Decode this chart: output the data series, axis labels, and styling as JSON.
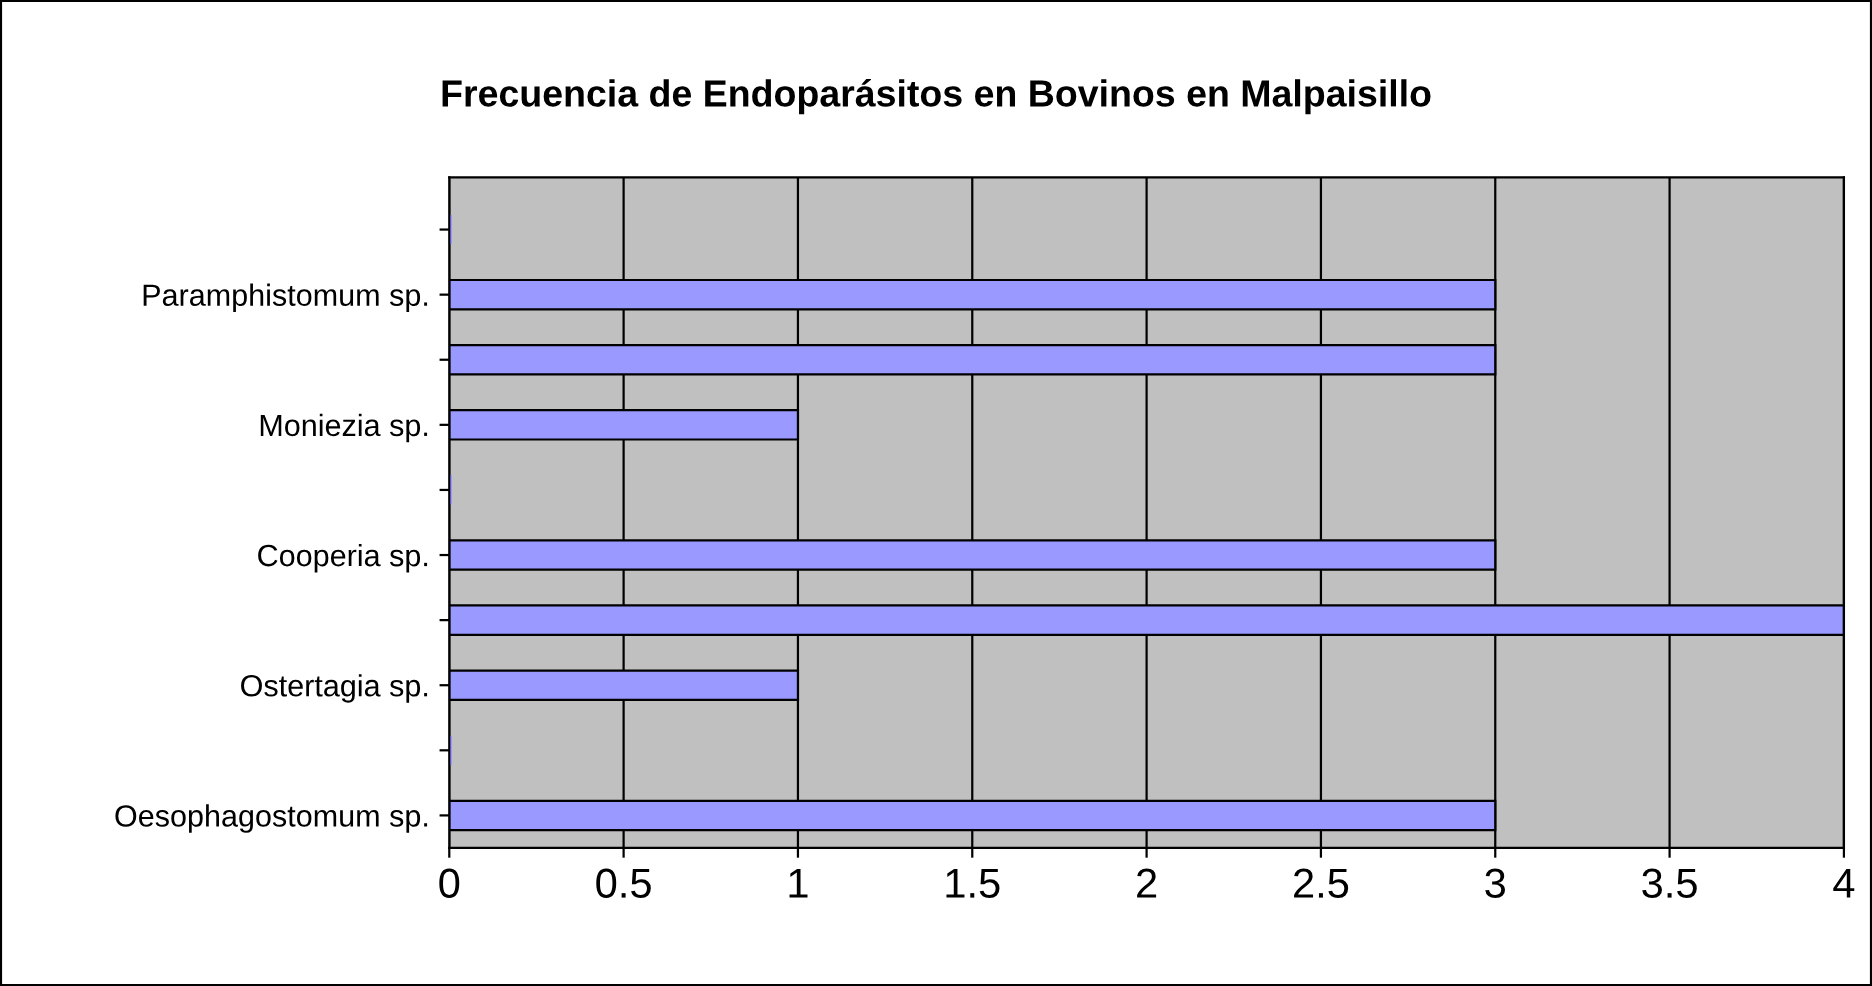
{
  "chart_data": {
    "type": "bar",
    "orientation": "horizontal",
    "title": "Frecuencia de Endoparásitos en Bovinos en Malpaisillo",
    "categories": [
      null,
      "Paramphistomum sp.",
      null,
      "Moniezia sp.",
      null,
      "Cooperia sp.",
      null,
      "Ostertagia sp.",
      null,
      "Oesophagostomum sp."
    ],
    "values": [
      0,
      3,
      3,
      1,
      0,
      3,
      4,
      1,
      0,
      3
    ],
    "color": "#9999ff",
    "xlim": [
      0,
      4
    ],
    "xticks": [
      0,
      0.5,
      1,
      1.5,
      2,
      2.5,
      3,
      3.5,
      4
    ],
    "grid": "x",
    "legend": false
  }
}
